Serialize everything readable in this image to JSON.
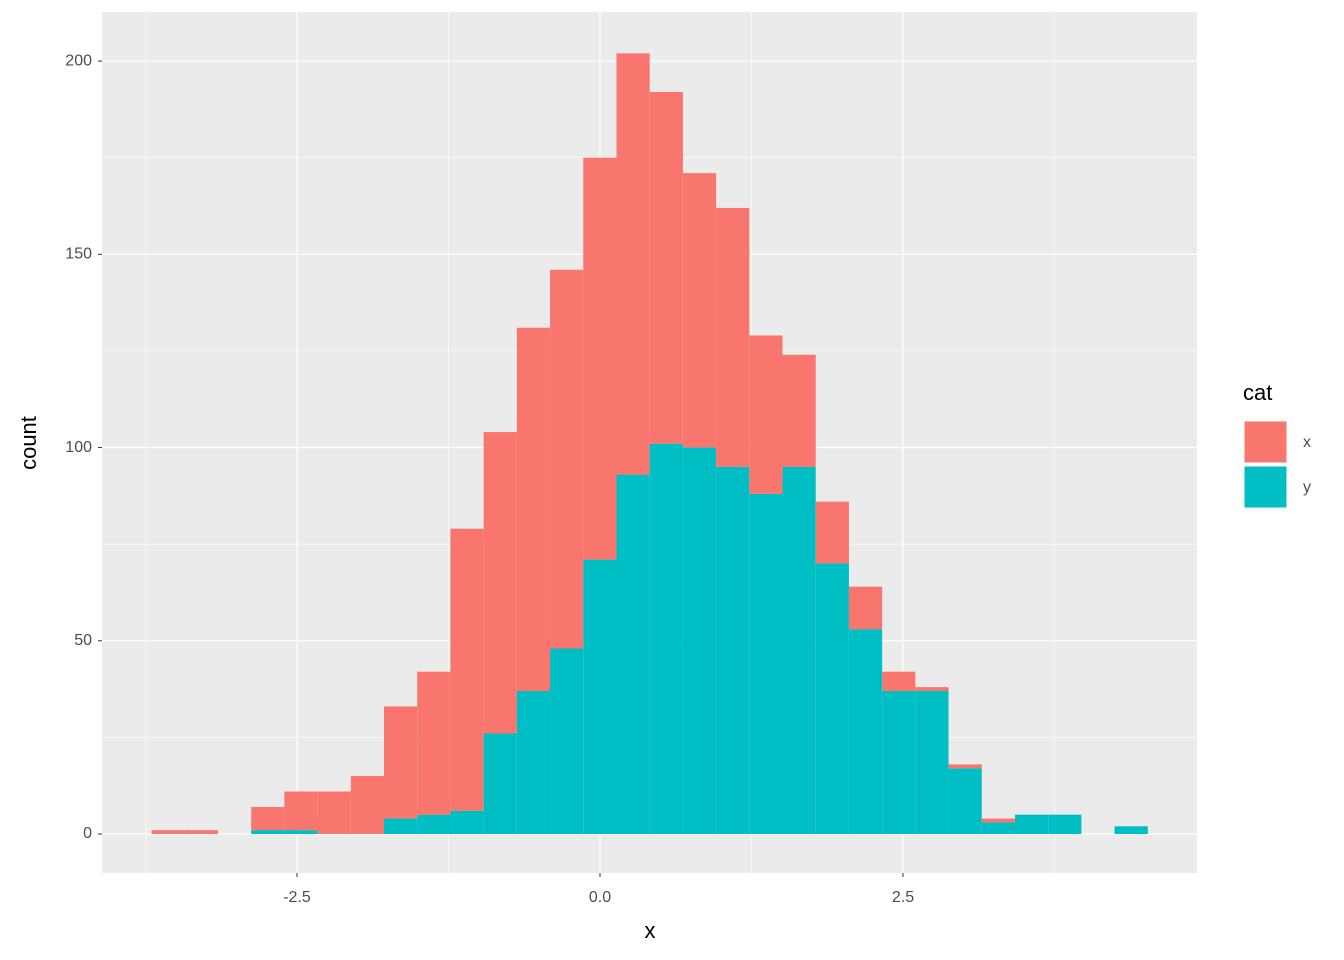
{
  "chart_data": {
    "type": "histogram",
    "stacked": true,
    "x_label": "x",
    "y_label": "count",
    "legend_title": "cat",
    "legend_position": "right",
    "grid": true,
    "bins": [
      -3.7,
      -3.426,
      -3.152,
      -2.878,
      -2.604,
      -2.33,
      -2.056,
      -1.782,
      -1.508,
      -1.234,
      -0.96,
      -0.686,
      -0.412,
      -0.138,
      0.136,
      0.41,
      0.684,
      0.958,
      1.232,
      1.506,
      1.78,
      2.054,
      2.328,
      2.602,
      2.876,
      3.15,
      3.424,
      3.698,
      3.972,
      4.246,
      4.52
    ],
    "series": [
      {
        "name": "x",
        "color": "#F8766D",
        "values": [
          1,
          1,
          0,
          6,
          10,
          11,
          15,
          29,
          37,
          73,
          78,
          94,
          98,
          104,
          109,
          91,
          71,
          67,
          41,
          29,
          16,
          11,
          5,
          1,
          1,
          1,
          0,
          0,
          0,
          0
        ]
      },
      {
        "name": "y",
        "color": "#00BFC4",
        "values": [
          0,
          0,
          0,
          1,
          1,
          0,
          0,
          4,
          5,
          6,
          26,
          37,
          48,
          71,
          93,
          101,
          100,
          95,
          88,
          95,
          70,
          53,
          37,
          37,
          17,
          3,
          5,
          5,
          0,
          2
        ]
      }
    ],
    "xlim": [
      -4.109,
      4.926
    ],
    "ylim": [
      -10.09,
      212.7
    ],
    "xticks": [
      -2.5,
      {
        "value": 0,
        "label": "0.0"
      },
      2.5
    ],
    "yticks": [
      0,
      50,
      100,
      150,
      200
    ]
  }
}
